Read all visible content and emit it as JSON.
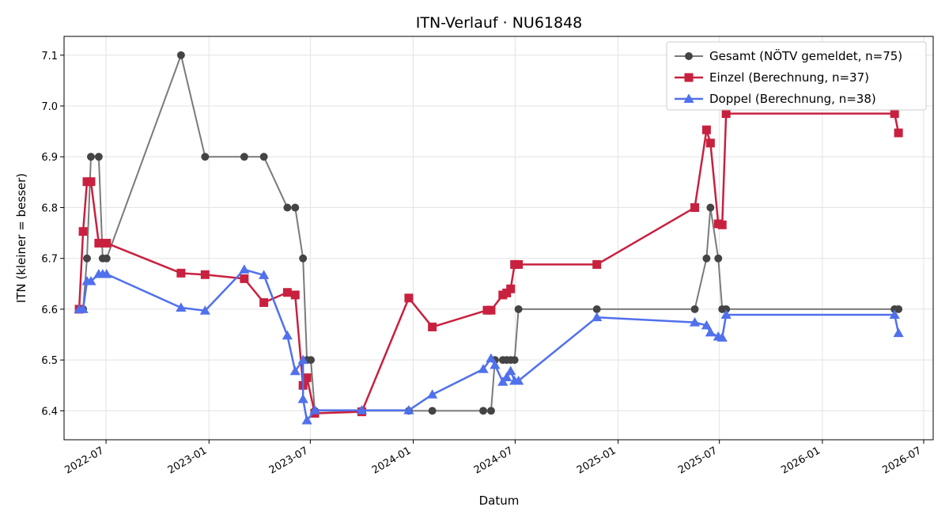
{
  "chart_data": {
    "type": "line",
    "title": "ITN-Verlauf · NU61848",
    "xlabel": "Datum",
    "ylabel": "ITN  (kleiner = besser)",
    "xlim": [
      "2022-04-17",
      "2026-07-18"
    ],
    "ylim": [
      6.343,
      7.137
    ],
    "grid": true,
    "legend_position": "top-right",
    "x_ticks": [
      {
        "date": "2022-07-01",
        "label": "2022-07"
      },
      {
        "date": "2023-01-01",
        "label": "2023-01"
      },
      {
        "date": "2023-07-01",
        "label": "2023-07"
      },
      {
        "date": "2024-01-01",
        "label": "2024-01"
      },
      {
        "date": "2024-07-01",
        "label": "2024-07"
      },
      {
        "date": "2025-01-01",
        "label": "2025-01"
      },
      {
        "date": "2025-07-01",
        "label": "2025-07"
      },
      {
        "date": "2026-01-01",
        "label": "2026-01"
      },
      {
        "date": "2026-07-01",
        "label": "2026-07"
      }
    ],
    "y_ticks": [
      "6.4",
      "6.5",
      "6.6",
      "6.7",
      "6.8",
      "6.9",
      "7.0",
      "7.1"
    ],
    "series": [
      {
        "name": "Gesamt (NÖTV gemeldet, n=75)",
        "color": "#7a7a7a",
        "marker_color": "#444444",
        "marker": "circle",
        "points": [
          [
            "2022-05-14",
            6.6
          ],
          [
            "2022-05-21",
            6.6
          ],
          [
            "2022-05-28",
            6.7
          ],
          [
            "2022-06-04",
            6.9
          ],
          [
            "2022-06-18",
            6.9
          ],
          [
            "2022-06-25",
            6.7
          ],
          [
            "2022-07-02",
            6.7
          ],
          [
            "2022-11-12",
            7.1
          ],
          [
            "2022-12-25",
            6.9
          ],
          [
            "2023-03-05",
            6.9
          ],
          [
            "2023-04-09",
            6.9
          ],
          [
            "2023-05-21",
            6.8
          ],
          [
            "2023-06-04",
            6.8
          ],
          [
            "2023-06-18",
            6.7
          ],
          [
            "2023-06-25",
            6.5
          ],
          [
            "2023-07-02",
            6.5
          ],
          [
            "2023-07-09",
            6.4
          ],
          [
            "2023-10-01",
            6.4
          ],
          [
            "2023-12-24",
            6.4
          ],
          [
            "2024-02-04",
            6.4
          ],
          [
            "2024-05-05",
            6.4
          ],
          [
            "2024-05-19",
            6.4
          ],
          [
            "2024-05-26",
            6.5
          ],
          [
            "2024-06-09",
            6.5
          ],
          [
            "2024-06-16",
            6.5
          ],
          [
            "2024-06-23",
            6.5
          ],
          [
            "2024-06-30",
            6.5
          ],
          [
            "2024-07-07",
            6.6
          ],
          [
            "2024-11-24",
            6.6
          ],
          [
            "2025-05-18",
            6.6
          ],
          [
            "2025-06-08",
            6.7
          ],
          [
            "2025-06-15",
            6.8
          ],
          [
            "2025-06-29",
            6.7
          ],
          [
            "2025-07-06",
            6.6
          ],
          [
            "2025-07-13",
            6.6
          ],
          [
            "2026-05-10",
            6.6
          ],
          [
            "2026-05-17",
            6.6
          ]
        ]
      },
      {
        "name": "Einzel (Berechnung, n=37)",
        "color": "#c8213f",
        "marker_color": "#c8213f",
        "marker": "square",
        "points": [
          [
            "2022-05-14",
            6.6
          ],
          [
            "2022-05-21",
            6.753
          ],
          [
            "2022-05-28",
            6.851
          ],
          [
            "2022-06-04",
            6.851
          ],
          [
            "2022-06-18",
            6.73
          ],
          [
            "2022-07-02",
            6.73
          ],
          [
            "2022-11-12",
            6.671
          ],
          [
            "2022-12-25",
            6.668
          ],
          [
            "2023-03-05",
            6.66
          ],
          [
            "2023-04-09",
            6.613
          ],
          [
            "2023-05-21",
            6.633
          ],
          [
            "2023-06-04",
            6.628
          ],
          [
            "2023-06-18",
            6.45
          ],
          [
            "2023-06-25",
            6.465
          ],
          [
            "2023-07-09",
            6.395
          ],
          [
            "2023-10-01",
            6.398
          ],
          [
            "2023-12-24",
            6.622
          ],
          [
            "2024-02-04",
            6.565
          ],
          [
            "2024-05-12",
            6.598
          ],
          [
            "2024-05-19",
            6.598
          ],
          [
            "2024-06-09",
            6.628
          ],
          [
            "2024-06-16",
            6.632
          ],
          [
            "2024-06-23",
            6.64
          ],
          [
            "2024-06-30",
            6.688
          ],
          [
            "2024-07-07",
            6.688
          ],
          [
            "2024-11-24",
            6.688
          ],
          [
            "2025-05-18",
            6.8
          ],
          [
            "2025-06-08",
            6.953
          ],
          [
            "2025-06-15",
            6.927
          ],
          [
            "2025-06-29",
            6.768
          ],
          [
            "2025-07-06",
            6.766
          ],
          [
            "2025-07-13",
            6.985
          ],
          [
            "2026-05-10",
            6.985
          ],
          [
            "2026-05-17",
            6.947
          ]
        ]
      },
      {
        "name": "Doppel (Berechnung, n=38)",
        "color": "#5070ec",
        "marker_color": "#5070ec",
        "marker": "triangle",
        "points": [
          [
            "2022-05-14",
            6.6
          ],
          [
            "2022-05-21",
            6.6
          ],
          [
            "2022-05-28",
            6.655
          ],
          [
            "2022-06-04",
            6.655
          ],
          [
            "2022-06-18",
            6.669
          ],
          [
            "2022-06-25",
            6.669
          ],
          [
            "2022-07-02",
            6.669
          ],
          [
            "2022-11-12",
            6.603
          ],
          [
            "2022-12-25",
            6.597
          ],
          [
            "2023-03-05",
            6.678
          ],
          [
            "2023-04-09",
            6.667
          ],
          [
            "2023-05-21",
            6.548
          ],
          [
            "2023-06-04",
            6.478
          ],
          [
            "2023-06-18",
            6.5
          ],
          [
            "2023-06-18",
            6.423
          ],
          [
            "2023-06-25",
            6.381
          ],
          [
            "2023-07-09",
            6.401
          ],
          [
            "2023-10-01",
            6.401
          ],
          [
            "2023-12-24",
            6.401
          ],
          [
            "2024-02-04",
            6.432
          ],
          [
            "2024-05-05",
            6.482
          ],
          [
            "2024-05-19",
            6.503
          ],
          [
            "2024-05-26",
            6.49
          ],
          [
            "2024-06-09",
            6.457
          ],
          [
            "2024-06-16",
            6.466
          ],
          [
            "2024-06-23",
            6.478
          ],
          [
            "2024-06-30",
            6.459
          ],
          [
            "2024-07-07",
            6.459
          ],
          [
            "2024-11-24",
            6.584
          ],
          [
            "2025-05-18",
            6.574
          ],
          [
            "2025-06-08",
            6.568
          ],
          [
            "2025-06-15",
            6.554
          ],
          [
            "2025-06-29",
            6.546
          ],
          [
            "2025-07-06",
            6.544
          ],
          [
            "2025-07-13",
            6.589
          ],
          [
            "2026-05-10",
            6.589
          ],
          [
            "2026-05-17",
            6.553
          ]
        ]
      }
    ]
  }
}
